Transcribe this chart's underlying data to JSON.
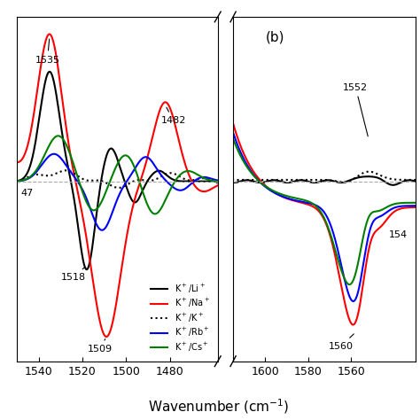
{
  "legend_labels": [
    "K$^+$/Li$^+$",
    "K$^+$/Na$^+$",
    "K$^+$/K$^+$",
    "K$^+$/Rb$^+$",
    "K$^+$/Cs$^+$"
  ],
  "colors": [
    "black",
    "red",
    "black",
    "blue",
    "green"
  ],
  "linestyles": [
    "-",
    "-",
    ":",
    "-",
    "-"
  ],
  "linewidths": [
    1.5,
    1.5,
    1.5,
    1.5,
    1.5
  ],
  "panel_a_xlim": [
    1550,
    1458
  ],
  "panel_a_xticks": [
    1540,
    1520,
    1500,
    1480
  ],
  "panel_b_xlim": [
    1615,
    1530
  ],
  "panel_b_xticks": [
    1600,
    1580,
    1560
  ],
  "xlabel": "Wavenumber (cm$^{-1}$)",
  "panel_b_label": "(b)"
}
